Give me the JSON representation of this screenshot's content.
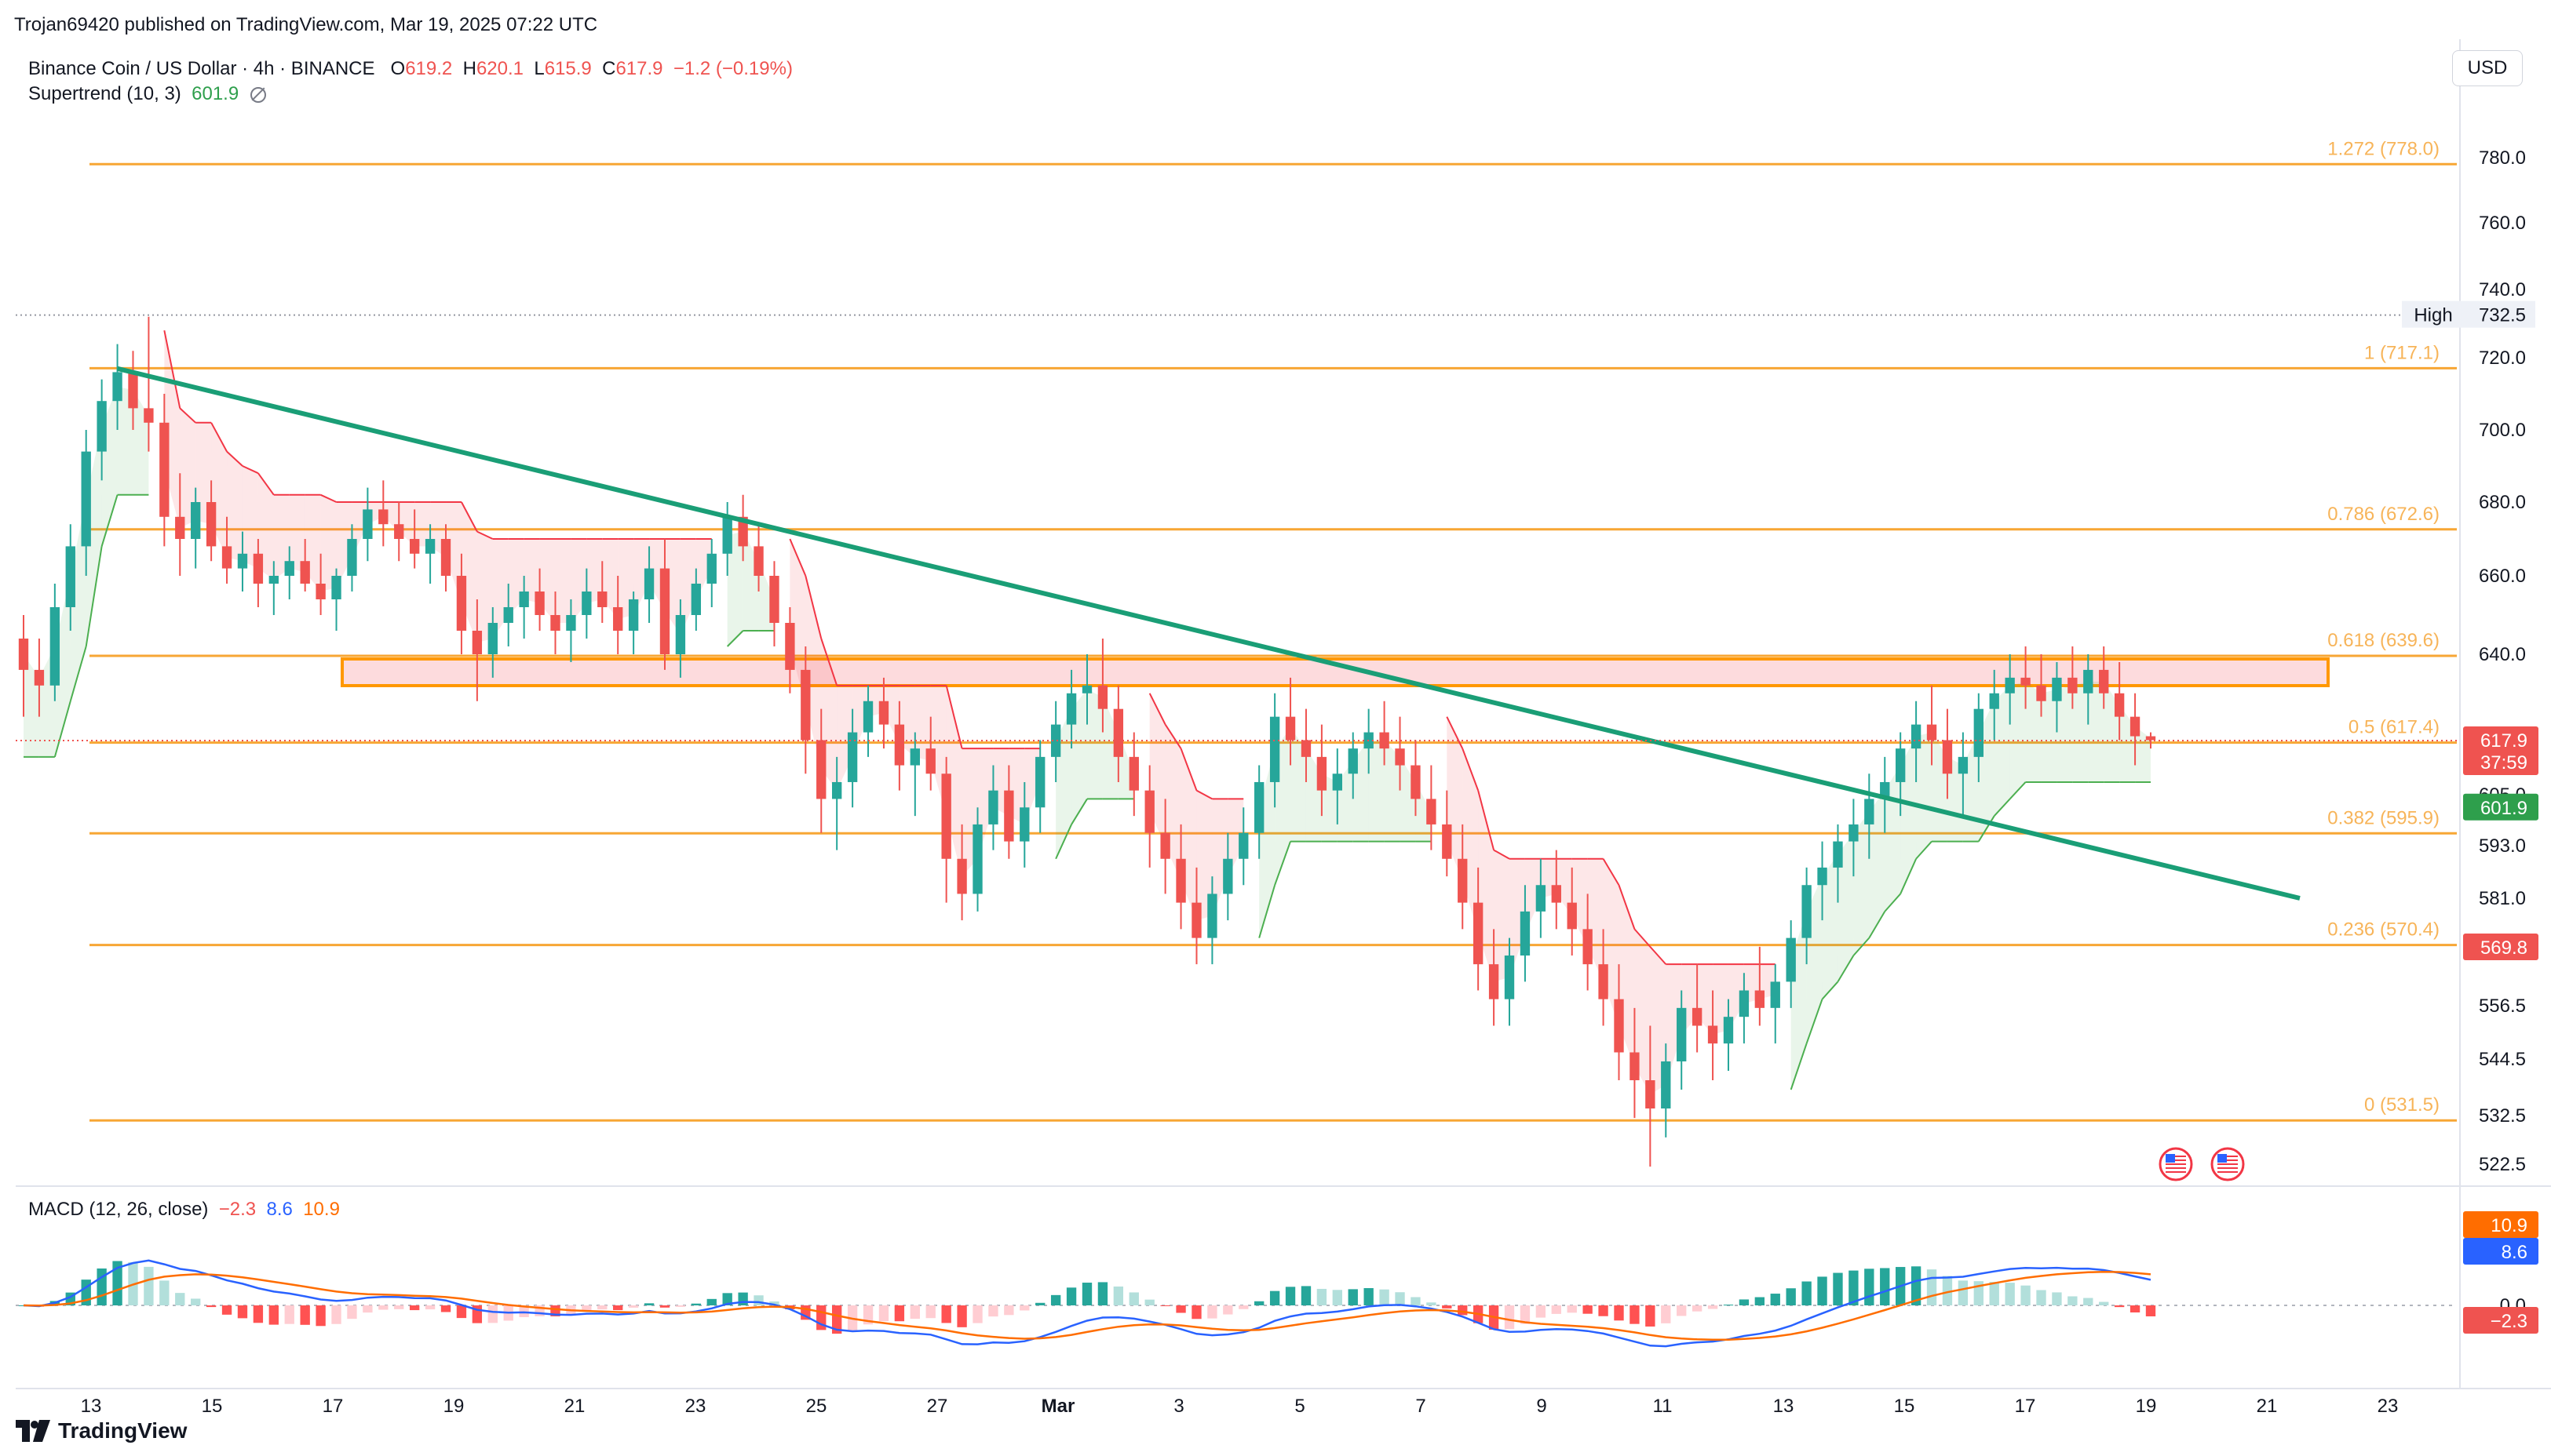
{
  "header": {
    "published": "Trojan69420 published on TradingView.com, Mar 19, 2025 07:22 UTC",
    "symbol": "Binance Coin / US Dollar · 4h · BINANCE",
    "o_label": "O",
    "o_val": "619.2",
    "h_label": "H",
    "h_val": "620.1",
    "l_label": "L",
    "l_val": "615.9",
    "c_label": "C",
    "c_val": "617.9",
    "change": "−1.2 (−0.19%)",
    "supertrend_label": "Supertrend (10, 3)",
    "supertrend_val": "601.9",
    "currency": "USD"
  },
  "macd_legend": {
    "label": "MACD (12, 26, close)",
    "hist": "−2.3",
    "macd": "8.6",
    "signal": "10.9"
  },
  "footer": {
    "brand": "TradingView"
  },
  "colors": {
    "up": "#26a69a",
    "down": "#ef5350",
    "fib": "#f7a634",
    "trend": "#1a9e76",
    "st_up": "#4caf50",
    "st_dn": "#f23645",
    "macd": "#2962ff",
    "signal": "#ff6d00"
  },
  "chart_data": {
    "type": "candlestick",
    "xlabels": [
      "13",
      "15",
      "17",
      "19",
      "21",
      "23",
      "25",
      "27",
      "Mar",
      "3",
      "5",
      "7",
      "9",
      "11",
      "13",
      "15",
      "17",
      "19",
      "21",
      "23"
    ],
    "price_ticks": [
      "780.0",
      "760.0",
      "740.0",
      "720.0",
      "700.0",
      "680.0",
      "660.0",
      "640.0",
      "605.0",
      "593.0",
      "581.0",
      "569.8",
      "556.5",
      "544.5",
      "532.5",
      "522.5"
    ],
    "fib_levels": [
      {
        "label": "1.272 (778.0)",
        "price": 778.0
      },
      {
        "label": "1 (717.1)",
        "price": 717.1
      },
      {
        "label": "0.786 (672.6)",
        "price": 672.6
      },
      {
        "label": "0.618 (639.6)",
        "price": 639.6
      },
      {
        "label": "0.5 (617.4)",
        "price": 617.4
      },
      {
        "label": "0.382 (595.9)",
        "price": 595.9
      },
      {
        "label": "0.236 (570.4)",
        "price": 570.4
      },
      {
        "label": "0 (531.5)",
        "price": 531.5
      }
    ],
    "high_label": "High",
    "high_value": "732.5",
    "price_badges": [
      {
        "text": "617.9",
        "sub": "37:59",
        "color": "#ef5350"
      },
      {
        "text": "601.9",
        "color": "#2e9f4c"
      },
      {
        "text": "569.8",
        "color": "#ef5350"
      }
    ],
    "macd_badges": [
      {
        "text": "10.9",
        "color": "#ff6d00"
      },
      {
        "text": "8.6",
        "color": "#2962ff"
      },
      {
        "text": "−2.3",
        "color": "#ef5350"
      }
    ],
    "macd_ticks": [
      "0.0"
    ],
    "candles": [
      [
        644,
        650,
        624,
        636
      ],
      [
        636,
        644,
        624,
        632
      ],
      [
        632,
        658,
        628,
        652
      ],
      [
        652,
        674,
        646,
        668
      ],
      [
        668,
        700,
        660,
        694
      ],
      [
        694,
        714,
        686,
        708
      ],
      [
        708,
        724,
        700,
        716
      ],
      [
        716,
        722,
        700,
        706
      ],
      [
        706,
        732,
        694,
        702
      ],
      [
        702,
        710,
        668,
        676
      ],
      [
        676,
        688,
        660,
        670
      ],
      [
        670,
        684,
        662,
        680
      ],
      [
        680,
        686,
        664,
        668
      ],
      [
        668,
        676,
        658,
        662
      ],
      [
        662,
        672,
        656,
        666
      ],
      [
        666,
        670,
        652,
        658
      ],
      [
        658,
        664,
        650,
        660
      ],
      [
        660,
        668,
        654,
        664
      ],
      [
        664,
        670,
        656,
        658
      ],
      [
        658,
        666,
        650,
        654
      ],
      [
        654,
        662,
        646,
        660
      ],
      [
        660,
        674,
        656,
        670
      ],
      [
        670,
        684,
        664,
        678
      ],
      [
        678,
        686,
        668,
        674
      ],
      [
        674,
        680,
        664,
        670
      ],
      [
        670,
        678,
        662,
        666
      ],
      [
        666,
        674,
        658,
        670
      ],
      [
        670,
        674,
        656,
        660
      ],
      [
        660,
        666,
        640,
        646
      ],
      [
        646,
        654,
        628,
        640
      ],
      [
        640,
        652,
        634,
        648
      ],
      [
        648,
        658,
        642,
        652
      ],
      [
        652,
        660,
        644,
        656
      ],
      [
        656,
        662,
        646,
        650
      ],
      [
        650,
        656,
        640,
        646
      ],
      [
        646,
        654,
        638,
        650
      ],
      [
        650,
        662,
        644,
        656
      ],
      [
        656,
        664,
        648,
        652
      ],
      [
        652,
        660,
        640,
        646
      ],
      [
        646,
        656,
        640,
        654
      ],
      [
        654,
        668,
        648,
        662
      ],
      [
        662,
        670,
        636,
        640
      ],
      [
        640,
        654,
        634,
        650
      ],
      [
        650,
        662,
        646,
        658
      ],
      [
        658,
        670,
        652,
        666
      ],
      [
        666,
        680,
        660,
        676
      ],
      [
        676,
        682,
        664,
        668
      ],
      [
        668,
        674,
        656,
        660
      ],
      [
        660,
        664,
        642,
        648
      ],
      [
        648,
        652,
        630,
        636
      ],
      [
        636,
        642,
        610,
        618
      ],
      [
        618,
        626,
        596,
        604
      ],
      [
        604,
        614,
        592,
        608
      ],
      [
        608,
        626,
        602,
        620
      ],
      [
        620,
        632,
        614,
        628
      ],
      [
        628,
        634,
        616,
        622
      ],
      [
        622,
        628,
        606,
        612
      ],
      [
        612,
        620,
        600,
        616
      ],
      [
        616,
        624,
        606,
        610
      ],
      [
        610,
        614,
        580,
        590
      ],
      [
        590,
        598,
        576,
        582
      ],
      [
        582,
        602,
        578,
        598
      ],
      [
        598,
        612,
        592,
        606
      ],
      [
        606,
        612,
        590,
        594
      ],
      [
        594,
        608,
        588,
        602
      ],
      [
        602,
        618,
        596,
        614
      ],
      [
        614,
        628,
        608,
        622
      ],
      [
        622,
        636,
        616,
        630
      ],
      [
        630,
        640,
        622,
        632
      ],
      [
        632,
        644,
        620,
        626
      ],
      [
        626,
        632,
        608,
        614
      ],
      [
        614,
        620,
        600,
        606
      ],
      [
        606,
        612,
        588,
        596
      ],
      [
        596,
        604,
        582,
        590
      ],
      [
        590,
        598,
        574,
        580
      ],
      [
        580,
        588,
        566,
        572
      ],
      [
        572,
        586,
        566,
        582
      ],
      [
        582,
        596,
        576,
        590
      ],
      [
        590,
        602,
        584,
        596
      ],
      [
        596,
        612,
        590,
        608
      ],
      [
        608,
        630,
        602,
        624
      ],
      [
        624,
        634,
        612,
        618
      ],
      [
        618,
        626,
        608,
        614
      ],
      [
        614,
        622,
        600,
        606
      ],
      [
        606,
        616,
        598,
        610
      ],
      [
        610,
        620,
        604,
        616
      ],
      [
        616,
        626,
        610,
        620
      ],
      [
        620,
        628,
        612,
        616
      ],
      [
        616,
        624,
        606,
        612
      ],
      [
        612,
        618,
        600,
        604
      ],
      [
        604,
        612,
        592,
        598
      ],
      [
        598,
        606,
        586,
        590
      ],
      [
        590,
        598,
        574,
        580
      ],
      [
        580,
        588,
        560,
        566
      ],
      [
        566,
        574,
        552,
        558
      ],
      [
        558,
        572,
        552,
        568
      ],
      [
        568,
        584,
        562,
        578
      ],
      [
        578,
        590,
        572,
        584
      ],
      [
        584,
        592,
        574,
        580
      ],
      [
        580,
        588,
        568,
        574
      ],
      [
        574,
        582,
        560,
        566
      ],
      [
        566,
        574,
        552,
        558
      ],
      [
        558,
        566,
        540,
        546
      ],
      [
        546,
        556,
        532,
        540
      ],
      [
        540,
        552,
        522,
        534
      ],
      [
        534,
        548,
        528,
        544
      ],
      [
        544,
        560,
        538,
        556
      ],
      [
        556,
        566,
        546,
        552
      ],
      [
        552,
        560,
        540,
        548
      ],
      [
        548,
        558,
        542,
        554
      ],
      [
        554,
        564,
        548,
        560
      ],
      [
        560,
        570,
        552,
        556
      ],
      [
        556,
        566,
        548,
        562
      ],
      [
        562,
        576,
        556,
        572
      ],
      [
        572,
        588,
        566,
        584
      ],
      [
        584,
        594,
        576,
        588
      ],
      [
        588,
        598,
        580,
        594
      ],
      [
        594,
        604,
        586,
        598
      ],
      [
        598,
        610,
        590,
        604
      ],
      [
        604,
        614,
        596,
        608
      ],
      [
        608,
        620,
        600,
        616
      ],
      [
        616,
        628,
        608,
        622
      ],
      [
        622,
        632,
        612,
        618
      ],
      [
        618,
        626,
        604,
        610
      ],
      [
        610,
        620,
        600,
        614
      ],
      [
        614,
        630,
        608,
        626
      ],
      [
        626,
        636,
        618,
        630
      ],
      [
        630,
        640,
        622,
        634
      ],
      [
        634,
        642,
        626,
        632
      ],
      [
        632,
        640,
        624,
        628
      ],
      [
        628,
        638,
        620,
        634
      ],
      [
        634,
        642,
        626,
        630
      ],
      [
        630,
        640,
        622,
        636
      ],
      [
        636,
        642,
        626,
        630
      ],
      [
        630,
        638,
        618,
        624
      ],
      [
        624,
        630,
        612,
        619
      ],
      [
        619,
        620,
        616,
        618
      ]
    ]
  }
}
